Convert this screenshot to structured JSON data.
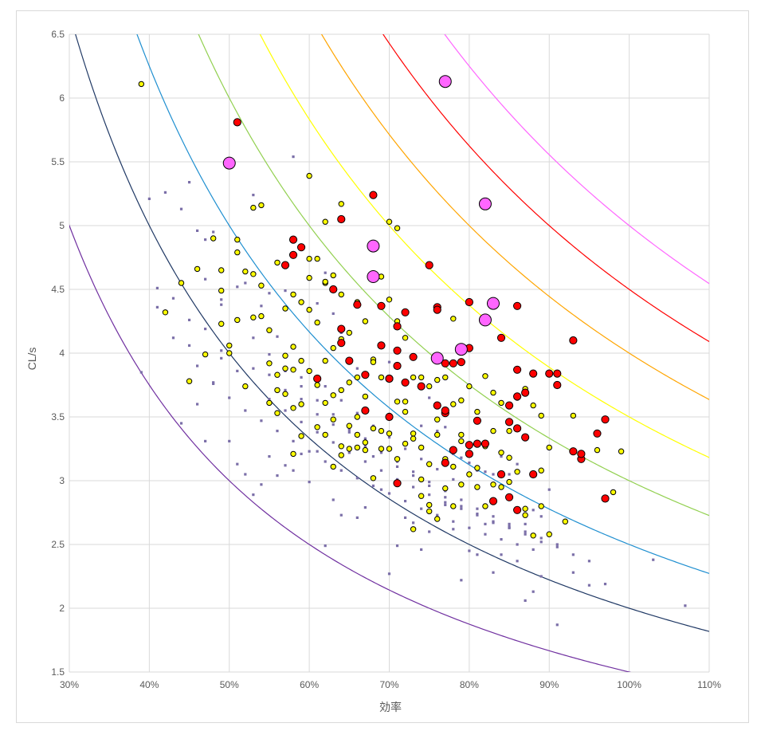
{
  "chart_data": {
    "type": "scatter",
    "xlabel": "効率",
    "ylabel": "CL/s",
    "xlim": [
      0.3,
      1.1
    ],
    "ylim": [
      1.5,
      6.5
    ],
    "x_ticks": [
      0.3,
      0.4,
      0.5,
      0.6,
      0.7,
      0.8,
      0.9,
      1.0,
      1.1
    ],
    "x_tick_labels": [
      "30%",
      "40%",
      "50%",
      "60%",
      "70%",
      "80%",
      "90%",
      "100%",
      "110%"
    ],
    "y_ticks": [
      1.5,
      2,
      2.5,
      3,
      3.5,
      4,
      4.5,
      5,
      5.5,
      6,
      6.5
    ],
    "y_tick_labels": [
      "1.5",
      "2",
      "2.5",
      "3",
      "3.5",
      "4",
      "4.5",
      "5",
      "5.5",
      "6",
      "6.5"
    ],
    "grid": true,
    "curves": [
      {
        "k": 1.5,
        "color": "#7030a0"
      },
      {
        "k": 2.0,
        "color": "#1f3864"
      },
      {
        "k": 2.5,
        "color": "#1f8fd0"
      },
      {
        "k": 3.0,
        "color": "#92d050"
      },
      {
        "k": 3.5,
        "color": "#ffff00"
      },
      {
        "k": 4.0,
        "color": "#ffa500"
      },
      {
        "k": 4.5,
        "color": "#ff0000"
      },
      {
        "k": 5.0,
        "color": "#ff66ff"
      }
    ],
    "series_styles": {
      "small": {
        "color": "#7b6fa8",
        "r": 1.6
      },
      "yellow": {
        "color": "#ffff00",
        "r": 3.2
      },
      "red": {
        "color": "#ff0000",
        "r": 4.6
      },
      "pink": {
        "color": "#ff66ff",
        "r": 7.5
      }
    },
    "series": [
      {
        "style": "pink",
        "x": [
          0.5,
          0.77,
          0.68,
          0.68,
          0.82,
          0.83,
          0.82,
          0.76,
          0.79
        ],
        "y": [
          5.49,
          6.13,
          4.84,
          4.6,
          5.17,
          4.39,
          4.26,
          3.96,
          4.03
        ]
      },
      {
        "style": "red",
        "x": [
          0.51,
          0.68,
          0.64,
          0.58,
          0.59,
          0.58,
          0.57,
          0.63,
          0.66,
          0.75,
          0.69,
          0.72,
          0.71,
          0.76,
          0.76,
          0.8,
          0.86,
          0.93,
          0.64,
          0.64,
          0.65,
          0.69,
          0.71,
          0.71,
          0.73,
          0.77,
          0.78,
          0.79,
          0.8,
          0.84,
          0.86,
          0.88,
          0.9,
          0.91,
          0.91,
          0.87,
          0.86,
          0.85,
          0.81,
          0.82,
          0.77,
          0.77,
          0.78,
          0.8,
          0.8,
          0.81,
          0.85,
          0.86,
          0.87,
          0.88,
          0.84,
          0.83,
          0.85,
          0.86,
          0.93,
          0.94,
          0.94,
          0.96,
          0.97,
          0.97,
          0.67,
          0.7,
          0.72,
          0.74,
          0.76,
          0.61,
          0.67,
          0.7,
          0.71,
          0.77,
          0.7
        ],
        "y": [
          5.81,
          5.24,
          5.05,
          4.89,
          4.83,
          4.77,
          4.69,
          4.5,
          4.38,
          4.69,
          4.37,
          4.32,
          4.21,
          4.36,
          4.34,
          4.4,
          4.37,
          4.1,
          4.19,
          4.08,
          3.94,
          4.06,
          4.02,
          3.9,
          3.97,
          3.92,
          3.92,
          3.93,
          4.04,
          4.12,
          3.87,
          3.84,
          3.84,
          3.84,
          3.75,
          3.69,
          3.66,
          3.59,
          3.47,
          3.29,
          3.53,
          3.55,
          3.24,
          3.21,
          3.28,
          3.29,
          3.46,
          3.41,
          3.34,
          3.05,
          3.05,
          2.84,
          2.87,
          2.77,
          3.23,
          3.17,
          3.21,
          3.37,
          3.48,
          2.86,
          3.83,
          3.8,
          3.77,
          3.74,
          3.59,
          3.8,
          3.55,
          3.5,
          2.98,
          3.14,
          3.8
        ]
      },
      {
        "style": "yellow",
        "x": [
          0.39,
          0.42,
          0.44,
          0.45,
          0.46,
          0.47,
          0.48,
          0.49,
          0.49,
          0.49,
          0.5,
          0.5,
          0.51,
          0.51,
          0.51,
          0.52,
          0.52,
          0.53,
          0.53,
          0.53,
          0.54,
          0.54,
          0.54,
          0.55,
          0.55,
          0.56,
          0.56,
          0.56,
          0.57,
          0.57,
          0.57,
          0.58,
          0.58,
          0.58,
          0.58,
          0.59,
          0.59,
          0.59,
          0.6,
          0.6,
          0.6,
          0.6,
          0.61,
          0.61,
          0.61,
          0.62,
          0.62,
          0.62,
          0.62,
          0.63,
          0.63,
          0.63,
          0.63,
          0.64,
          0.64,
          0.64,
          0.64,
          0.65,
          0.65,
          0.65,
          0.66,
          0.66,
          0.66,
          0.67,
          0.67,
          0.67,
          0.68,
          0.68,
          0.68,
          0.69,
          0.69,
          0.69,
          0.7,
          0.7,
          0.7,
          0.71,
          0.71,
          0.71,
          0.72,
          0.72,
          0.72,
          0.73,
          0.73,
          0.73,
          0.74,
          0.74,
          0.74,
          0.75,
          0.75,
          0.75,
          0.76,
          0.76,
          0.76,
          0.77,
          0.77,
          0.77,
          0.78,
          0.78,
          0.78,
          0.79,
          0.79,
          0.79,
          0.8,
          0.8,
          0.81,
          0.81,
          0.82,
          0.82,
          0.83,
          0.83,
          0.84,
          0.84,
          0.85,
          0.85,
          0.86,
          0.86,
          0.87,
          0.87,
          0.88,
          0.88,
          0.89,
          0.89,
          0.9,
          0.9,
          0.92,
          0.93,
          0.96,
          0.98,
          0.99,
          0.6,
          0.62,
          0.64,
          0.68,
          0.7,
          0.71,
          0.56,
          0.57,
          0.59,
          0.61,
          0.63,
          0.65,
          0.66,
          0.67,
          0.69,
          0.72,
          0.74,
          0.75,
          0.78,
          0.79,
          0.81,
          0.83,
          0.85,
          0.87,
          0.89,
          0.55,
          0.58,
          0.62,
          0.64,
          0.66,
          0.68,
          0.7,
          0.73,
          0.76,
          0.8,
          0.82,
          0.84
        ],
        "y": [
          6.11,
          4.32,
          4.55,
          3.78,
          4.66,
          3.99,
          4.9,
          4.49,
          4.65,
          4.23,
          4.0,
          4.06,
          4.89,
          4.79,
          4.26,
          4.64,
          3.74,
          5.14,
          4.62,
          4.28,
          5.16,
          4.53,
          4.29,
          3.61,
          4.18,
          4.71,
          3.83,
          3.53,
          4.35,
          3.98,
          3.88,
          4.46,
          4.05,
          3.87,
          3.57,
          4.4,
          3.94,
          3.35,
          5.39,
          4.74,
          4.34,
          3.86,
          4.74,
          4.24,
          3.75,
          5.03,
          4.55,
          3.94,
          3.61,
          4.61,
          4.04,
          3.67,
          3.11,
          5.17,
          4.46,
          3.71,
          3.27,
          4.16,
          3.77,
          3.25,
          4.4,
          3.81,
          3.26,
          4.25,
          3.66,
          3.3,
          4.6,
          3.95,
          3.41,
          4.6,
          3.81,
          3.25,
          5.03,
          4.42,
          3.37,
          4.98,
          4.25,
          3.62,
          4.12,
          3.62,
          3.29,
          3.81,
          3.33,
          2.62,
          3.81,
          3.26,
          2.88,
          3.74,
          3.13,
          2.81,
          3.79,
          3.36,
          2.7,
          3.81,
          3.17,
          2.94,
          4.27,
          3.6,
          2.8,
          3.63,
          3.31,
          2.97,
          3.74,
          3.27,
          3.54,
          3.1,
          3.82,
          3.27,
          3.39,
          2.97,
          3.61,
          3.22,
          3.39,
          3.18,
          3.65,
          3.07,
          3.72,
          2.73,
          3.59,
          2.57,
          3.51,
          2.8,
          3.26,
          2.58,
          2.68,
          3.51,
          3.24,
          2.91,
          3.23,
          4.59,
          4.56,
          4.11,
          3.93,
          3.51,
          3.17,
          3.71,
          3.68,
          3.6,
          3.42,
          3.48,
          3.43,
          3.5,
          3.24,
          3.39,
          3.54,
          3.01,
          2.76,
          3.11,
          3.36,
          2.95,
          3.69,
          2.99,
          2.78,
          3.08,
          3.92,
          3.21,
          3.36,
          3.2,
          3.36,
          3.02,
          3.25,
          3.37,
          3.48,
          3.05,
          2.8,
          2.95
        ]
      },
      {
        "style": "small",
        "x": [
          0.39,
          0.4,
          0.41,
          0.42,
          0.43,
          0.44,
          0.44,
          0.45,
          0.45,
          0.46,
          0.46,
          0.47,
          0.47,
          0.48,
          0.48,
          0.49,
          0.49,
          0.5,
          0.5,
          0.51,
          0.51,
          0.52,
          0.52,
          0.53,
          0.53,
          0.54,
          0.54,
          0.55,
          0.55,
          0.56,
          0.56,
          0.57,
          0.57,
          0.58,
          0.58,
          0.59,
          0.59,
          0.6,
          0.6,
          0.61,
          0.61,
          0.62,
          0.62,
          0.63,
          0.63,
          0.64,
          0.64,
          0.65,
          0.65,
          0.66,
          0.66,
          0.67,
          0.67,
          0.68,
          0.68,
          0.69,
          0.69,
          0.7,
          0.7,
          0.71,
          0.71,
          0.72,
          0.72,
          0.73,
          0.73,
          0.74,
          0.74,
          0.75,
          0.75,
          0.76,
          0.76,
          0.77,
          0.77,
          0.78,
          0.78,
          0.79,
          0.79,
          0.8,
          0.8,
          0.81,
          0.81,
          0.82,
          0.82,
          0.83,
          0.83,
          0.84,
          0.84,
          0.85,
          0.85,
          0.86,
          0.86,
          0.87,
          0.87,
          0.88,
          0.88,
          0.89,
          0.89,
          0.9,
          0.91,
          0.93,
          0.95,
          0.97,
          1.03,
          1.07,
          0.41,
          0.43,
          0.45,
          0.47,
          0.49,
          0.51,
          0.53,
          0.55,
          0.57,
          0.59,
          0.61,
          0.63,
          0.65,
          0.67,
          0.69,
          0.71,
          0.73,
          0.75,
          0.77,
          0.79,
          0.81,
          0.83,
          0.85,
          0.87,
          0.89,
          0.91,
          0.93,
          0.95,
          0.46,
          0.48,
          0.5,
          0.52,
          0.54,
          0.56,
          0.58,
          0.6,
          0.62,
          0.64,
          0.66,
          0.68,
          0.7,
          0.72,
          0.74,
          0.76,
          0.78,
          0.8,
          0.82,
          0.84,
          0.86,
          0.88,
          0.47,
          0.49,
          0.51,
          0.53,
          0.55,
          0.57,
          0.59,
          0.61,
          0.63,
          0.65,
          0.67,
          0.69,
          0.71,
          0.73,
          0.75,
          0.77,
          0.79,
          0.81,
          0.83,
          0.85,
          0.87,
          0.89,
          0.91,
          0.55,
          0.57,
          0.59,
          0.61,
          0.63,
          0.65,
          0.67,
          0.69,
          0.71,
          0.73,
          0.75,
          0.77,
          0.79,
          0.81,
          0.83,
          0.85,
          0.62,
          0.64,
          0.66,
          0.68,
          0.7,
          0.72,
          0.74,
          0.76,
          0.78
        ],
        "y": [
          3.85,
          5.21,
          4.51,
          5.26,
          4.12,
          5.13,
          3.45,
          5.34,
          4.06,
          4.96,
          3.6,
          4.89,
          3.31,
          4.95,
          3.77,
          4.38,
          3.96,
          4.0,
          3.31,
          4.52,
          3.13,
          4.55,
          3.05,
          5.24,
          2.89,
          4.37,
          2.97,
          4.47,
          3.19,
          4.13,
          3.04,
          4.49,
          3.12,
          5.54,
          3.08,
          3.81,
          3.21,
          4.34,
          2.99,
          4.39,
          3.23,
          4.63,
          2.49,
          4.31,
          2.85,
          4.16,
          2.73,
          3.94,
          3.4,
          3.88,
          2.71,
          3.81,
          2.79,
          3.96,
          3.19,
          3.82,
          2.93,
          3.93,
          2.27,
          4.02,
          2.49,
          3.75,
          2.71,
          3.8,
          2.67,
          3.43,
          2.46,
          3.65,
          2.6,
          3.39,
          2.7,
          3.42,
          2.81,
          3.21,
          2.62,
          3.18,
          2.22,
          3.14,
          2.45,
          3.08,
          2.42,
          3.07,
          2.66,
          3.05,
          2.28,
          3.19,
          2.42,
          3.05,
          2.64,
          3.13,
          2.37,
          2.66,
          2.06,
          2.77,
          2.13,
          2.72,
          2.25,
          2.93,
          1.87,
          2.28,
          2.18,
          2.19,
          2.38,
          2.02,
          4.36,
          4.43,
          4.26,
          4.19,
          4.02,
          3.86,
          3.88,
          3.83,
          3.71,
          3.64,
          3.52,
          3.44,
          3.38,
          3.27,
          3.22,
          3.11,
          3.04,
          2.96,
          2.87,
          2.8,
          2.74,
          2.67,
          2.63,
          2.58,
          2.52,
          2.48,
          2.42,
          2.37,
          3.9,
          3.76,
          3.65,
          3.55,
          3.47,
          3.39,
          3.31,
          3.23,
          3.15,
          3.08,
          3.02,
          2.96,
          2.9,
          2.84,
          2.78,
          2.73,
          2.68,
          2.63,
          2.58,
          2.54,
          2.5,
          2.46,
          4.58,
          4.42,
          4.27,
          4.12,
          3.99,
          3.86,
          3.74,
          3.63,
          3.52,
          3.42,
          3.33,
          3.24,
          3.15,
          3.07,
          2.99,
          2.92,
          2.85,
          2.78,
          2.72,
          2.66,
          2.6,
          2.55,
          2.5,
          3.64,
          3.55,
          3.46,
          3.38,
          3.3,
          3.22,
          3.15,
          3.08,
          3.01,
          2.95,
          2.89,
          2.83,
          2.78,
          2.73,
          2.68,
          2.63,
          3.74,
          3.63,
          3.53,
          3.43,
          3.34,
          3.25,
          3.17,
          3.09,
          3.01
        ]
      }
    ]
  }
}
